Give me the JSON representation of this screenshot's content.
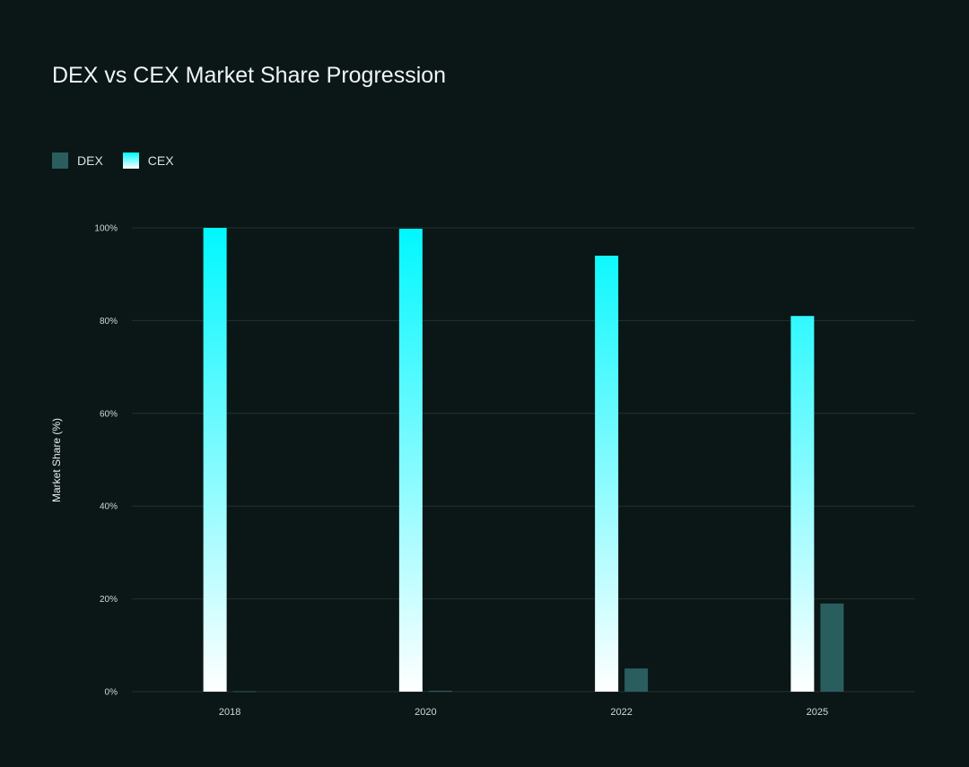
{
  "chart_data": {
    "type": "bar",
    "title": "DEX vs CEX Market Share Progression",
    "xlabel": "",
    "ylabel": "Market Share (%)",
    "ylim": [
      0,
      100
    ],
    "yticks": [
      "0%",
      "20%",
      "40%",
      "60%",
      "80%",
      "100%"
    ],
    "ytick_values": [
      0,
      20,
      40,
      60,
      80,
      100
    ],
    "categories": [
      "2018",
      "2020",
      "2022",
      "2025"
    ],
    "series": [
      {
        "name": "CEX",
        "values": [
          100,
          99.8,
          94,
          81
        ]
      },
      {
        "name": "DEX",
        "values": [
          0.1,
          0.2,
          5,
          19
        ]
      }
    ],
    "legend": [
      "DEX",
      "CEX"
    ],
    "legend_position": "top-left",
    "grid": true
  },
  "colors": {
    "dex": "#2a5e5e",
    "cex_top": "#00f7ff",
    "cex_bottom": "#ffffff",
    "grid": "#243232",
    "background": "#0b1616"
  }
}
